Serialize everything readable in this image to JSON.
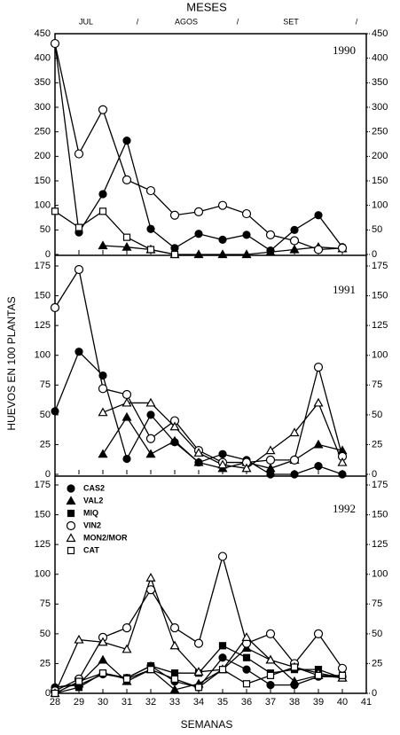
{
  "title": "MESES",
  "months": [
    "JUL",
    "/",
    "AGOS",
    "/",
    "SET",
    "/"
  ],
  "ylabel": "HUEVOS EN 100 PLANTAS",
  "xlabel": "SEMANAS",
  "chart_data": [
    {
      "type": "line",
      "title": "1990",
      "x": [
        28,
        29,
        30,
        31,
        32,
        33,
        34,
        35,
        36,
        37,
        38,
        39,
        40
      ],
      "xlim": [
        28,
        41
      ],
      "xticks": [
        28,
        29,
        30,
        31,
        32,
        33,
        34,
        35,
        36,
        37,
        38,
        39,
        40,
        41
      ],
      "ylim": [
        0,
        450
      ],
      "yticks": [
        0,
        50,
        100,
        150,
        200,
        250,
        300,
        350,
        400,
        450
      ],
      "series": [
        {
          "name": "CAS2",
          "color": "#000000",
          "marker": "circle",
          "filled": true,
          "values": [
            430,
            45,
            123,
            232,
            52,
            13,
            42,
            30,
            40,
            8,
            50,
            80,
            15
          ]
        },
        {
          "name": "VAL2",
          "color": "#000000",
          "marker": "triangle",
          "filled": true,
          "values": [
            null,
            null,
            18,
            15,
            10,
            0,
            0,
            0,
            0,
            5,
            10,
            15,
            12
          ]
        },
        {
          "name": "VIN2",
          "color": "#000000",
          "marker": "circle",
          "filled": false,
          "values": [
            430,
            205,
            295,
            152,
            130,
            80,
            87,
            100,
            83,
            40,
            28,
            10,
            13
          ]
        },
        {
          "name": "CAT",
          "color": "#000000",
          "marker": "square",
          "filled": false,
          "values": [
            88,
            55,
            88,
            35,
            10,
            0,
            null,
            null,
            null,
            null,
            null,
            null,
            null
          ]
        }
      ]
    },
    {
      "type": "line",
      "title": "1991",
      "x": [
        28,
        29,
        30,
        31,
        32,
        33,
        34,
        35,
        36,
        37,
        38,
        39,
        40
      ],
      "xlim": [
        28,
        41
      ],
      "xticks": [
        28,
        29,
        30,
        31,
        32,
        33,
        34,
        35,
        36,
        37,
        38,
        39,
        40,
        41
      ],
      "ylim": [
        0,
        175
      ],
      "yticks": [
        0,
        25,
        50,
        75,
        100,
        125,
        150,
        175
      ],
      "series": [
        {
          "name": "CAS2",
          "color": "#000000",
          "marker": "circle",
          "filled": true,
          "values": [
            53,
            103,
            83,
            13,
            50,
            27,
            10,
            17,
            12,
            0,
            0,
            7,
            0
          ]
        },
        {
          "name": "VAL2",
          "color": "#000000",
          "marker": "triangle",
          "filled": true,
          "values": [
            null,
            null,
            17,
            48,
            17,
            28,
            10,
            5,
            10,
            5,
            12,
            25,
            20
          ]
        },
        {
          "name": "VIN2",
          "color": "#000000",
          "marker": "circle",
          "filled": false,
          "values": [
            140,
            172,
            72,
            67,
            30,
            45,
            20,
            10,
            10,
            12,
            12,
            90,
            15
          ]
        },
        {
          "name": "MON2/MOR",
          "color": "#000000",
          "marker": "triangle",
          "filled": false,
          "values": [
            null,
            null,
            52,
            60,
            60,
            40,
            18,
            8,
            5,
            20,
            35,
            60,
            10
          ]
        }
      ]
    },
    {
      "type": "line",
      "title": "1992",
      "legend": "upper left",
      "x": [
        28,
        29,
        30,
        31,
        32,
        33,
        34,
        35,
        36,
        37,
        38,
        39,
        40
      ],
      "xlim": [
        28,
        41
      ],
      "xticks": [
        28,
        29,
        30,
        31,
        32,
        33,
        34,
        35,
        36,
        37,
        38,
        39,
        40,
        41
      ],
      "ylim": [
        0,
        175
      ],
      "yticks": [
        0,
        25,
        50,
        75,
        100,
        125,
        150,
        175
      ],
      "series": [
        {
          "name": "CAS2",
          "color": "#000000",
          "marker": "circle",
          "filled": true,
          "values": [
            5,
            7,
            16,
            13,
            23,
            10,
            5,
            30,
            20,
            7,
            7,
            14,
            14
          ]
        },
        {
          "name": "VAL2",
          "color": "#000000",
          "marker": "triangle",
          "filled": true,
          "values": [
            5,
            8,
            28,
            10,
            20,
            3,
            8,
            20,
            38,
            28,
            10,
            15,
            13
          ]
        },
        {
          "name": "MIQ",
          "color": "#000000",
          "marker": "square",
          "filled": true,
          "values": [
            0,
            5,
            17,
            13,
            23,
            17,
            17,
            40,
            30,
            17,
            20,
            20,
            13
          ]
        },
        {
          "name": "VIN2",
          "color": "#000000",
          "marker": "circle",
          "filled": false,
          "values": [
            2,
            12,
            47,
            55,
            87,
            55,
            42,
            115,
            42,
            50,
            25,
            50,
            21
          ]
        },
        {
          "name": "MON2/MOR",
          "color": "#000000",
          "marker": "triangle",
          "filled": false,
          "values": [
            0,
            45,
            43,
            37,
            97,
            40,
            18,
            20,
            47,
            28,
            22,
            17,
            13
          ]
        },
        {
          "name": "CAT",
          "color": "#000000",
          "marker": "square",
          "filled": false,
          "values": [
            0,
            10,
            17,
            12,
            20,
            12,
            5,
            20,
            8,
            15,
            22,
            15,
            15
          ]
        }
      ]
    }
  ]
}
